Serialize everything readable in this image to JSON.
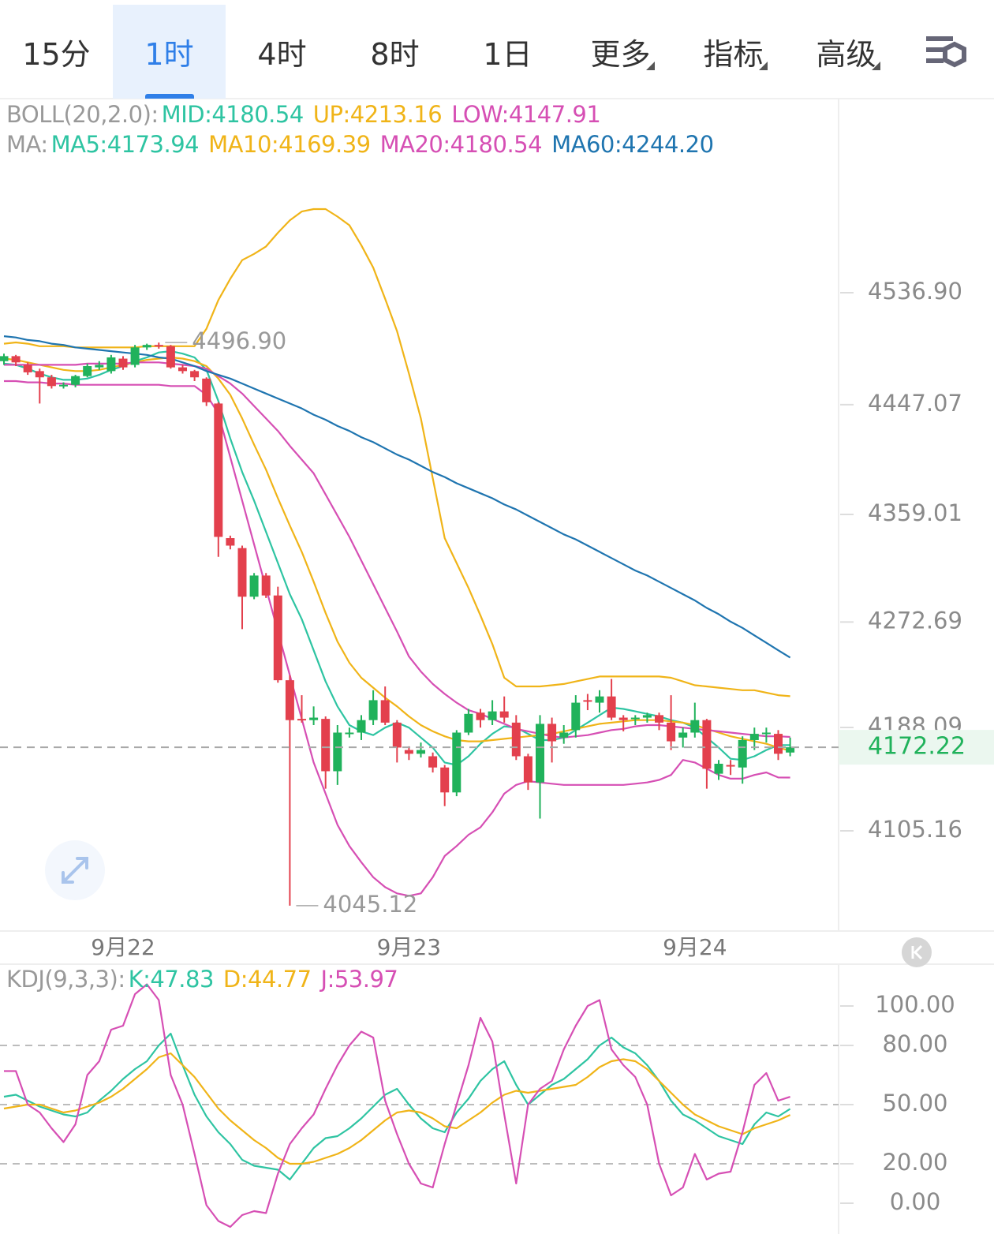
{
  "tabs": {
    "items": [
      {
        "label": "15分"
      },
      {
        "label": "1时"
      },
      {
        "label": "4时"
      },
      {
        "label": "8时"
      },
      {
        "label": "1日"
      },
      {
        "label": "更多",
        "dropdown": true
      },
      {
        "label": "指标",
        "dropdown": true
      },
      {
        "label": "高级",
        "dropdown": true
      }
    ],
    "active": 1
  },
  "chart_data": [
    {
      "type": "candlestick",
      "categories": [
        null,
        null,
        null,
        null,
        null,
        null,
        null,
        null,
        null,
        null,
        "9月22",
        null,
        null,
        null,
        null,
        null,
        null,
        null,
        null,
        null,
        null,
        null,
        null,
        null,
        null,
        null,
        null,
        null,
        null,
        null,
        null,
        null,
        null,
        null,
        "9月23",
        null,
        null,
        null,
        null,
        null,
        null,
        null,
        null,
        null,
        null,
        null,
        null,
        null,
        null,
        null,
        null,
        null,
        null,
        null,
        null,
        null,
        null,
        null,
        "9月24",
        null,
        null,
        null,
        null,
        null,
        null,
        null,
        null
      ],
      "open": [
        4482,
        4486,
        4479,
        4474,
        4469,
        4462,
        4463,
        4470,
        4477,
        4474,
        4484,
        4479,
        4493,
        4495,
        4494,
        4477,
        4474,
        4468,
        4448,
        4340,
        4332,
        4293,
        4310,
        4294,
        4226,
        4195,
        4194,
        4195,
        4153,
        4183,
        4184,
        4194,
        4210,
        4192,
        4170,
        4167,
        4165,
        4156,
        4136,
        4184,
        4200,
        4194,
        4201,
        4192,
        4165,
        4144,
        4191,
        4180,
        4186,
        4210,
        4208,
        4213,
        4196,
        4195,
        4196,
        4198,
        4192,
        4180,
        4184,
        4194,
        4151,
        4158,
        4156,
        4178,
        4183,
        4183,
        4168
      ],
      "high": [
        4488,
        4487,
        4481,
        4476,
        4471,
        4465,
        4471,
        4480,
        4482,
        4487,
        4486,
        4495,
        4496,
        4496.9,
        4495,
        4479,
        4475,
        4469,
        4449,
        4342,
        4334,
        4312,
        4312,
        4301,
        4230,
        4214,
        4205,
        4197,
        4190,
        4188,
        4198,
        4218,
        4221,
        4194,
        4173,
        4176,
        4168,
        4158,
        4186,
        4203,
        4203,
        4210,
        4213,
        4198,
        4167,
        4198,
        4196,
        4190,
        4214,
        4215,
        4218,
        4227,
        4198,
        4198,
        4200,
        4200,
        4214,
        4188,
        4208,
        4195,
        4162,
        4162,
        4181,
        4188,
        4188,
        4186,
        4180
      ],
      "low": [
        4479,
        4478,
        4471,
        4448,
        4460,
        4460,
        4461,
        4469,
        4475,
        4472,
        4475,
        4477,
        4491,
        4492,
        4476,
        4472,
        4466,
        4446,
        4325,
        4331,
        4267,
        4291,
        4292,
        4224,
        4045.12,
        4192,
        4190,
        4139,
        4142,
        4180,
        4178,
        4190,
        4190,
        4160,
        4162,
        4164,
        4152,
        4125,
        4133,
        4182,
        4188,
        4190,
        4192,
        4162,
        4138,
        4115,
        4160,
        4175,
        4180,
        4202,
        4200,
        4194,
        4185,
        4190,
        4192,
        4186,
        4170,
        4172,
        4180,
        4139,
        4146,
        4150,
        4143,
        4170,
        4176,
        4162,
        4165
      ],
      "close": [
        4486,
        4481,
        4473,
        4469,
        4462,
        4463,
        4470,
        4478,
        4479,
        4485,
        4477,
        4493,
        4495,
        4494,
        4477,
        4474,
        4469,
        4449,
        4341,
        4334,
        4293,
        4310,
        4294,
        4226,
        4194,
        4194,
        4196,
        4153,
        4184,
        4184,
        4194,
        4210,
        4192,
        4172,
        4167,
        4170,
        4156,
        4136,
        4184,
        4199,
        4194,
        4201,
        4196,
        4165,
        4144,
        4191,
        4177,
        4184,
        4208,
        4209,
        4213,
        4196,
        4194,
        4196,
        4198,
        4192,
        4177,
        4184,
        4194,
        4155,
        4159,
        4157,
        4178,
        4183,
        4184,
        4167,
        4172.22
      ],
      "up_color": "#20b25b",
      "down_color": "#e3404d",
      "boll": {
        "label": "BOLL(20,2.0):",
        "mid": {
          "name": "MID:4180.54",
          "color": "#2ec4a2"
        },
        "series": [
          {
            "name": "UP:4213.16",
            "color": "#f0b418",
            "values": [
              4496,
              4497,
              4496,
              4494,
              4494,
              4494,
              4493,
              4493,
              4493,
              4493,
              4493,
              4493,
              4494,
              4494,
              4494,
              4494,
              4494,
              4508,
              4531,
              4548,
              4563,
              4568,
              4574,
              4585,
              4595,
              4602,
              4604,
              4604,
              4598,
              4591,
              4575,
              4557,
              4532,
              4506,
              4472,
              4436,
              4388,
              4340,
              4320,
              4300,
              4278,
              4255,
              4228,
              4221,
              4221,
              4221,
              4222,
              4223,
              4225,
              4227,
              4229,
              4229,
              4229,
              4229,
              4229,
              4229,
              4228,
              4225,
              4222,
              4221,
              4220,
              4219,
              4218,
              4218,
              4216,
              4214,
              4213.16
            ]
          },
          {
            "name": "LOW:4147.91",
            "color": "#d64fb4",
            "values": [
              4466,
              4466,
              4465,
              4465,
              4464,
              4464,
              4463,
              4463,
              4463,
              4463,
              4463,
              4463,
              4463,
              4463,
              4462,
              4462,
              4462,
              4455,
              4440,
              4405,
              4370,
              4335,
              4300,
              4265,
              4230,
              4195,
              4160,
              4135,
              4110,
              4093,
              4080,
              4068,
              4060,
              4055,
              4053,
              4055,
              4068,
              4085,
              4093,
              4102,
              4108,
              4120,
              4135,
              4142,
              4145,
              4144,
              4143,
              4142,
              4142,
              4142,
              4142,
              4142,
              4142,
              4143,
              4144,
              4146,
              4150,
              4162,
              4160,
              4155,
              4150,
              4147,
              4147,
              4150,
              4152,
              4148,
              4147.91
            ]
          }
        ]
      },
      "ma": {
        "label": "MA:",
        "series": [
          {
            "name": "MA5:4173.94",
            "color": "#2ec4a2",
            "values": [
              4480,
              4479,
              4476,
              4472,
              4469,
              4467,
              4467,
              4468,
              4471,
              4475,
              4478,
              4482,
              4485,
              4489,
              4490,
              4488,
              4485,
              4475,
              4450,
              4420,
              4393,
              4370,
              4345,
              4320,
              4295,
              4275,
              4250,
              4225,
              4205,
              4190,
              4185,
              4182,
              4188,
              4192,
              4188,
              4180,
              4172,
              4160,
              4158,
              4165,
              4175,
              4183,
              4189,
              4188,
              4183,
              4178,
              4178,
              4180,
              4186,
              4192,
              4198,
              4204,
              4203,
              4201,
              4199,
              4197,
              4194,
              4192,
              4188,
              4180,
              4172,
              4163,
              4162,
              4165,
              4170,
              4174,
              4173.94
            ]
          },
          {
            "name": "MA10:4169.39",
            "color": "#f0b418",
            "values": [
              4484,
              4483,
              4481,
              4479,
              4477,
              4475,
              4474,
              4474,
              4475,
              4477,
              4479,
              4481,
              4483,
              4484,
              4485,
              4484,
              4482,
              4478,
              4468,
              4455,
              4436,
              4415,
              4395,
              4372,
              4350,
              4329,
              4305,
              4280,
              4257,
              4240,
              4228,
              4220,
              4212,
              4205,
              4197,
              4190,
              4185,
              4181,
              4178,
              4177,
              4177,
              4178,
              4179,
              4180,
              4181,
              4182,
              4183,
              4185,
              4187,
              4189,
              4191,
              4192,
              4193,
              4194,
              4194,
              4194,
              4193,
              4192,
              4190,
              4187,
              4184,
              4181,
              4179,
              4177,
              4175,
              4172,
              4169.39
            ]
          },
          {
            "name": "MA20:4180.54",
            "color": "#d64fb4",
            "values": [
              4479,
              4479,
              4479,
              4479,
              4479,
              4479,
              4479,
              4480,
              4480,
              4480,
              4480,
              4481,
              4481,
              4481,
              4480,
              4479,
              4478,
              4476,
              4470,
              4464,
              4456,
              4446,
              4436,
              4426,
              4414,
              4403,
              4392,
              4375,
              4358,
              4341,
              4322,
              4303,
              4284,
              4265,
              4245,
              4233,
              4223,
              4215,
              4208,
              4202,
              4199,
              4195,
              4191,
              4187,
              4185,
              4183,
              4181,
              4180,
              4181,
              4182,
              4184,
              4186,
              4187,
              4189,
              4190,
              4190,
              4189,
              4188,
              4187,
              4186,
              4185,
              4184,
              4183,
              4182,
              4181,
              4181,
              4180.54
            ]
          },
          {
            "name": "MA60:4244.20",
            "color": "#1f75b0",
            "values": [
              4502,
              4501,
              4499,
              4498,
              4496,
              4495,
              4493,
              4492,
              4491,
              4490,
              4489,
              4488,
              4487,
              4485,
              4484,
              4481,
              4478,
              4474,
              4471,
              4468,
              4464,
              4460,
              4456,
              4452,
              4448,
              4444,
              4439,
              4435,
              4430,
              4426,
              4421,
              4417,
              4412,
              4407,
              4403,
              4398,
              4393,
              4389,
              4384,
              4380,
              4376,
              4372,
              4367,
              4363,
              4358,
              4353,
              4348,
              4343,
              4339,
              4334,
              4329,
              4324,
              4319,
              4314,
              4310,
              4305,
              4300,
              4295,
              4290,
              4284,
              4279,
              4273,
              4268,
              4262,
              4256,
              4250,
              4244.2
            ]
          }
        ]
      },
      "ylim": [
        4024.8,
        4692.6
      ],
      "yticks": [
        {
          "value": 4536.9,
          "label": "4536.90"
        },
        4447.07,
        4359.01,
        4272.69,
        4188.09,
        4105.16
      ],
      "extremes": [
        {
          "value": 4496.9,
          "label": "4496.90"
        },
        {
          "value": 4045.12,
          "label": "4045.12"
        }
      ],
      "last_price": {
        "value": 4172.22,
        "label": "4172.22",
        "color": "#20b25b"
      }
    },
    {
      "type": "line",
      "label": "KDJ(9,3,3):",
      "series": [
        {
          "name": "K:47.83",
          "color": "#2ec4a2",
          "values": [
            54,
            55,
            52,
            49,
            47,
            45,
            44,
            46,
            52,
            57,
            63,
            68,
            72,
            80,
            86,
            70,
            55,
            44,
            36,
            30,
            22,
            19,
            18,
            17,
            12,
            20,
            28,
            33,
            34,
            38,
            43,
            49,
            55,
            58,
            50,
            43,
            38,
            36,
            46,
            53,
            62,
            68,
            72,
            60,
            50,
            55,
            60,
            63,
            68,
            73,
            80,
            84,
            79,
            76,
            70,
            62,
            52,
            45,
            42,
            38,
            34,
            32,
            30,
            40,
            46,
            44,
            47.83
          ]
        },
        {
          "name": "D:44.77",
          "color": "#f0b418",
          "values": [
            48,
            49,
            50,
            50,
            48,
            46,
            47,
            49,
            51,
            54,
            58,
            63,
            68,
            74,
            76,
            70,
            64,
            56,
            48,
            42,
            37,
            32,
            28,
            23,
            20,
            20,
            21,
            23,
            25,
            28,
            32,
            37,
            42,
            46,
            47,
            46,
            43,
            39,
            38,
            42,
            46,
            51,
            55,
            57,
            56,
            57,
            58,
            59,
            60,
            64,
            69,
            72,
            73,
            72,
            68,
            62,
            56,
            50,
            45,
            42,
            39,
            37,
            35,
            38,
            40,
            42,
            44.77
          ]
        },
        {
          "name": "J:53.97",
          "color": "#d64fb4",
          "values": [
            67,
            67,
            50,
            46,
            38,
            31,
            40,
            65,
            72,
            88,
            90,
            106,
            111,
            103,
            65,
            50,
            25,
            -1,
            -9,
            -12,
            -6,
            -4,
            -5,
            15,
            30,
            38,
            45,
            58,
            70,
            80,
            87,
            84,
            52,
            35,
            20,
            10,
            8,
            30,
            50,
            70,
            94,
            82,
            45,
            10,
            50,
            58,
            62,
            78,
            90,
            100,
            103,
            78,
            70,
            64,
            50,
            20,
            4,
            8,
            25,
            12,
            15,
            16,
            36,
            60,
            66,
            52,
            53.97
          ]
        }
      ],
      "ylim": [
        -14,
        120
      ],
      "yticks": [
        {
          "value": 100,
          "label": "100.00"
        },
        {
          "value": 80,
          "label": "80.00",
          "grid": true
        },
        {
          "value": 50,
          "label": "50.00",
          "grid": true
        },
        {
          "value": 20,
          "label": "20.00",
          "grid": true
        },
        {
          "value": 0,
          "label": "0.00"
        }
      ]
    }
  ]
}
